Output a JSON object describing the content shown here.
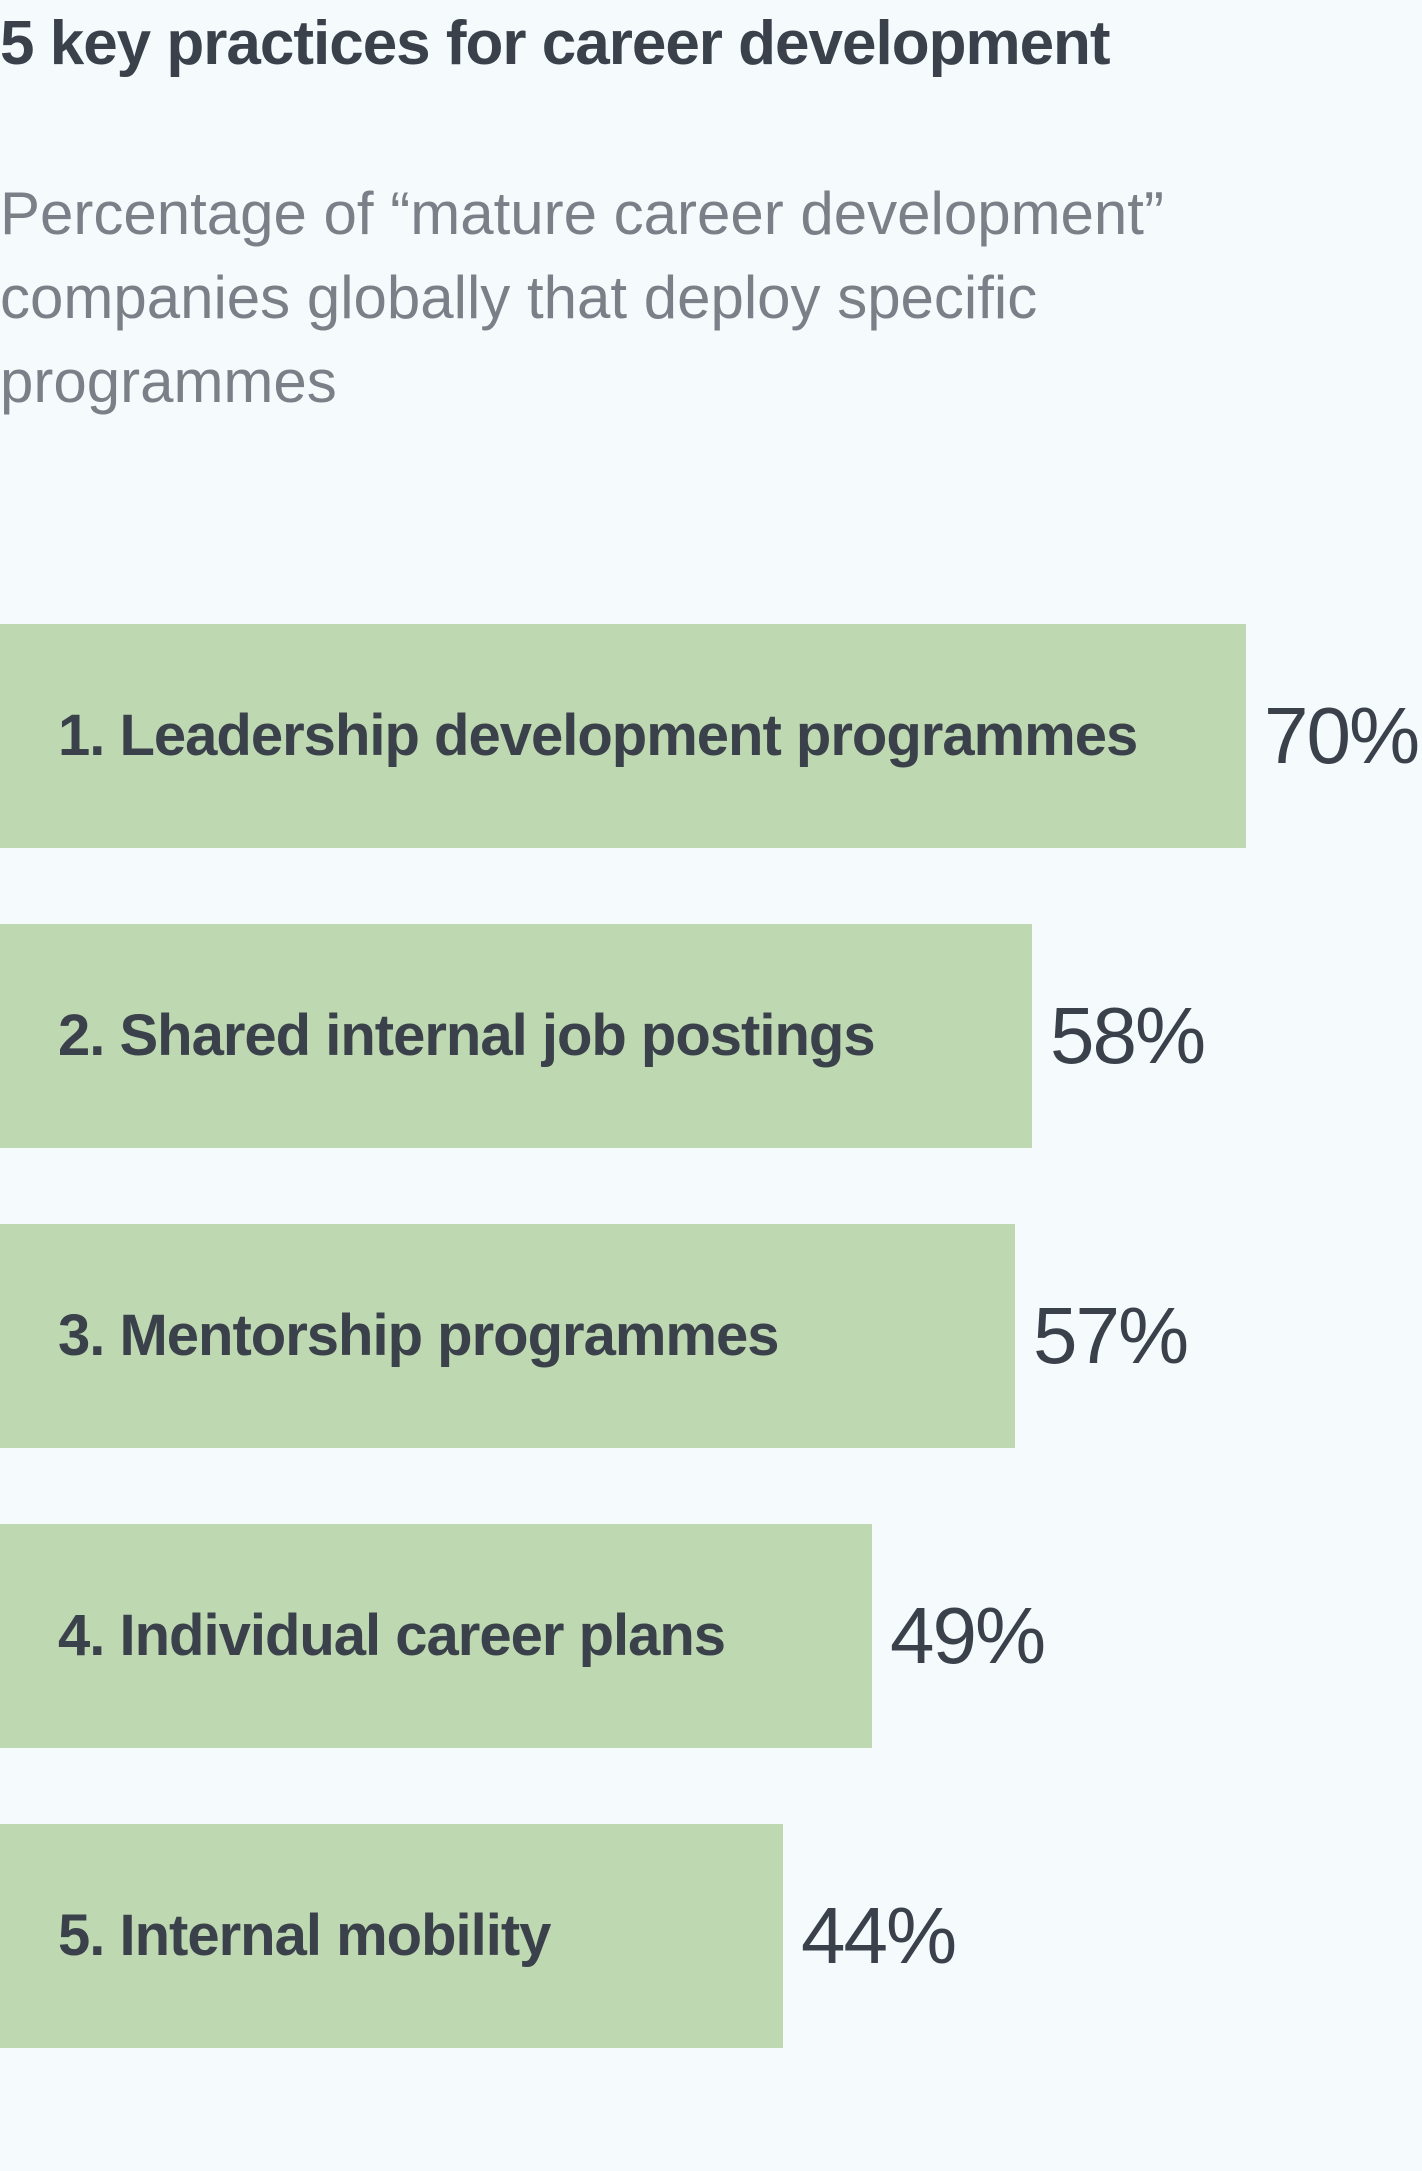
{
  "title": "5 key practices for career development",
  "subtitle": "Percentage of “mature career development” companies globally that deploy specific programmes",
  "colors": {
    "background": "#f5fafd",
    "bar": "#bed8b1",
    "text": "#3a414b",
    "subtitle": "#7b8088"
  },
  "chart_data": {
    "type": "bar",
    "orientation": "horizontal",
    "title": "5 key practices for career development",
    "subtitle": "Percentage of “mature career development” companies globally that deploy specific programmes",
    "xlabel": "",
    "ylabel": "",
    "xlim": [
      0,
      70
    ],
    "grid": false,
    "categories": [
      "1. Leadership development programmes",
      "2. Shared internal job postings",
      "3. Mentorship programmes",
      "4. Individual career plans",
      "5. Internal mobility"
    ],
    "values": [
      70,
      58,
      57,
      49,
      44
    ],
    "value_labels": [
      "70%",
      "58%",
      "57%",
      "49%",
      "44%"
    ]
  }
}
